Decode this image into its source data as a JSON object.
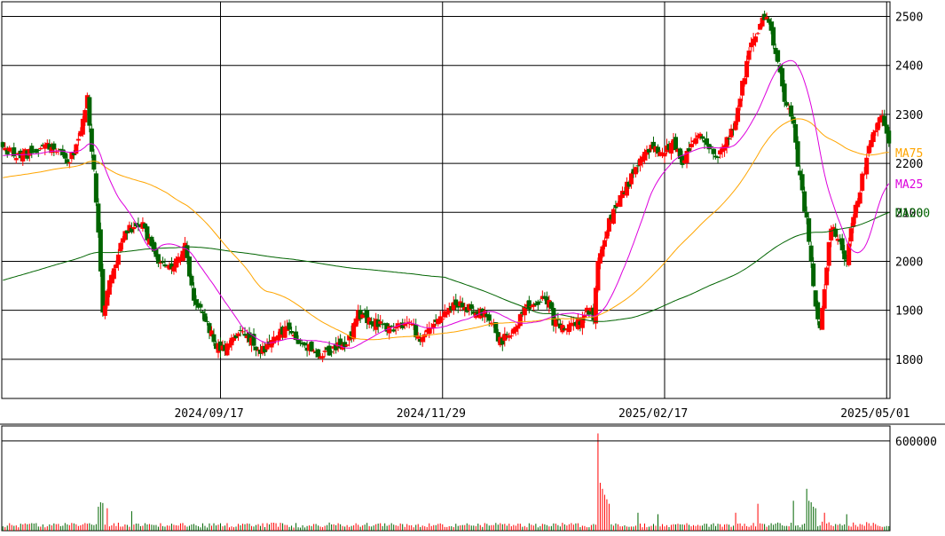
{
  "chart_data": [
    {
      "type": "candlestick",
      "title": "",
      "price_axis": {
        "ticks": [
          1800,
          1900,
          2000,
          2100,
          2200,
          2300,
          2400,
          2500
        ],
        "tick_labels": [
          "1800",
          "1900",
          "2000",
          "2100",
          "2200",
          "2300",
          "2400",
          "2500"
        ],
        "range": [
          1720,
          2530
        ],
        "side": "right"
      },
      "date_axis": {
        "tick_labels": [
          "2024/09/17",
          "2024/11/29",
          "2025/02/17",
          "2025/05/01"
        ]
      },
      "grid": true,
      "colors": {
        "up": "#ff0000",
        "down": "#006400",
        "ma25": "#dd00dd",
        "ma75": "#ffa500",
        "ma200": "#006400",
        "grid": "#000000"
      },
      "legend": [
        {
          "name": "MA25",
          "color": "#dd00dd"
        },
        {
          "name": "MA75",
          "color": "#ffa500"
        },
        {
          "name": "MA200",
          "color": "#006400"
        }
      ],
      "anchors": [
        [
          0,
          2230
        ],
        [
          8,
          2215
        ],
        [
          20,
          2235
        ],
        [
          30,
          2205
        ],
        [
          34,
          2245
        ],
        [
          38,
          2330
        ],
        [
          42,
          2130
        ],
        [
          45,
          1900
        ],
        [
          50,
          1990
        ],
        [
          55,
          2060
        ],
        [
          62,
          2080
        ],
        [
          66,
          2040
        ],
        [
          70,
          2005
        ],
        [
          76,
          1990
        ],
        [
          82,
          2030
        ],
        [
          86,
          1920
        ],
        [
          92,
          1870
        ],
        [
          96,
          1830
        ],
        [
          100,
          1820
        ],
        [
          106,
          1860
        ],
        [
          112,
          1835
        ],
        [
          116,
          1810
        ],
        [
          122,
          1850
        ],
        [
          128,
          1860
        ],
        [
          134,
          1835
        ],
        [
          140,
          1815
        ],
        [
          146,
          1815
        ],
        [
          152,
          1830
        ],
        [
          156,
          1840
        ],
        [
          160,
          1890
        ],
        [
          166,
          1880
        ],
        [
          172,
          1860
        ],
        [
          178,
          1865
        ],
        [
          184,
          1870
        ],
        [
          188,
          1840
        ],
        [
          192,
          1870
        ],
        [
          198,
          1890
        ],
        [
          204,
          1910
        ],
        [
          210,
          1905
        ],
        [
          216,
          1895
        ],
        [
          220,
          1870
        ],
        [
          224,
          1835
        ],
        [
          228,
          1850
        ],
        [
          232,
          1880
        ],
        [
          236,
          1910
        ],
        [
          242,
          1920
        ],
        [
          246,
          1920
        ],
        [
          248,
          1880
        ],
        [
          252,
          1860
        ],
        [
          256,
          1870
        ],
        [
          260,
          1880
        ],
        [
          264,
          1900
        ],
        [
          266,
          1890
        ],
        [
          268,
          1990
        ],
        [
          270,
          2040
        ],
        [
          274,
          2090
        ],
        [
          278,
          2130
        ],
        [
          282,
          2160
        ],
        [
          286,
          2200
        ],
        [
          292,
          2240
        ],
        [
          298,
          2220
        ],
        [
          302,
          2250
        ],
        [
          306,
          2200
        ],
        [
          310,
          2240
        ],
        [
          314,
          2270
        ],
        [
          318,
          2230
        ],
        [
          322,
          2210
        ],
        [
          326,
          2250
        ],
        [
          330,
          2280
        ],
        [
          332,
          2340
        ],
        [
          334,
          2380
        ],
        [
          336,
          2420
        ],
        [
          338,
          2460
        ],
        [
          342,
          2490
        ],
        [
          344,
          2500
        ],
        [
          346,
          2460
        ],
        [
          350,
          2380
        ],
        [
          352,
          2330
        ],
        [
          356,
          2290
        ],
        [
          358,
          2200
        ],
        [
          362,
          2080
        ],
        [
          364,
          2000
        ],
        [
          366,
          1900
        ],
        [
          368,
          1860
        ],
        [
          370,
          1940
        ],
        [
          372,
          2050
        ],
        [
          374,
          2080
        ],
        [
          376,
          2040
        ],
        [
          378,
          2020
        ],
        [
          380,
          2010
        ],
        [
          382,
          2060
        ],
        [
          384,
          2110
        ],
        [
          386,
          2150
        ],
        [
          390,
          2230
        ],
        [
          394,
          2280
        ],
        [
          396,
          2300
        ],
        [
          398,
          2260
        ],
        [
          399,
          2230
        ]
      ],
      "volume_axis": {
        "ticks": [
          600000
        ],
        "tick_labels": [
          "600000"
        ],
        "max": 700000
      },
      "volume_spikes": [
        [
          43,
          160000
        ],
        [
          44,
          190000
        ],
        [
          45,
          185000
        ],
        [
          47,
          150000
        ],
        [
          58,
          130000
        ],
        [
          268,
          650000
        ],
        [
          269,
          320000
        ],
        [
          270,
          280000
        ],
        [
          271,
          240000
        ],
        [
          272,
          210000
        ],
        [
          273,
          180000
        ],
        [
          286,
          120000
        ],
        [
          295,
          110000
        ],
        [
          330,
          120000
        ],
        [
          340,
          180000
        ],
        [
          356,
          200000
        ],
        [
          362,
          280000
        ],
        [
          363,
          200000
        ],
        [
          364,
          190000
        ],
        [
          365,
          160000
        ],
        [
          366,
          150000
        ],
        [
          370,
          120000
        ],
        [
          380,
          110000
        ]
      ]
    }
  ]
}
